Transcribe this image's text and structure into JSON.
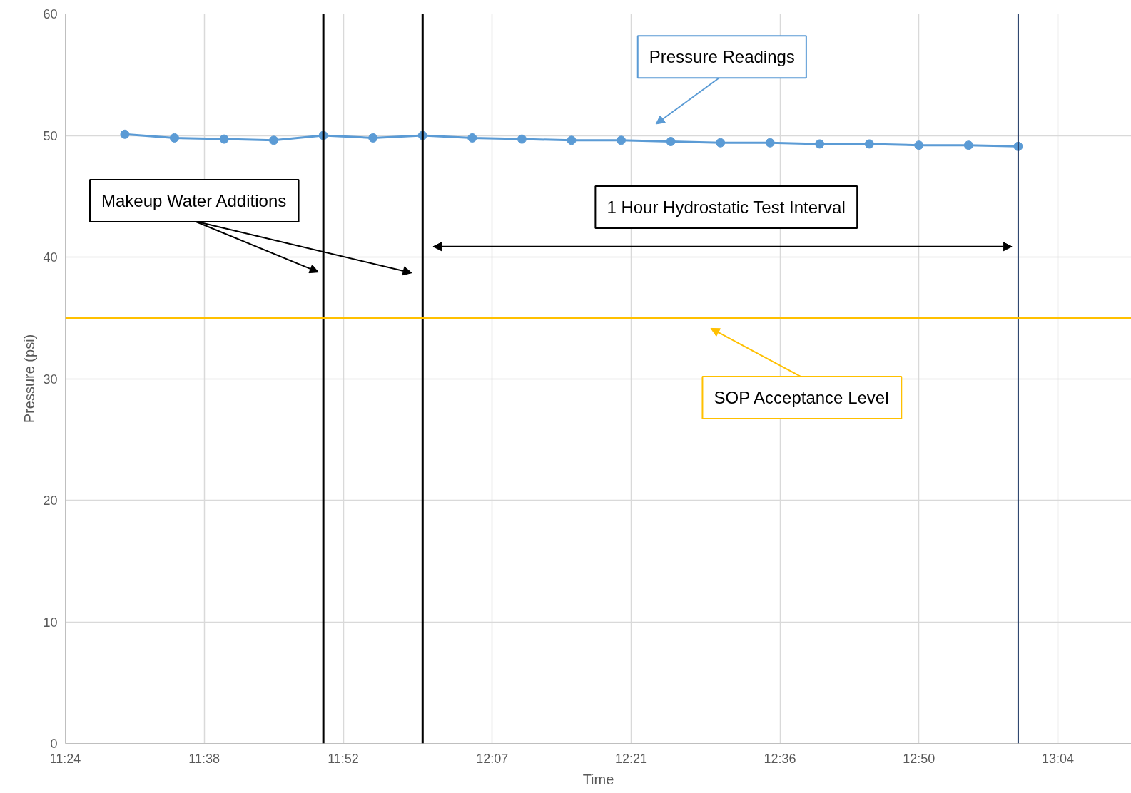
{
  "chart_data": {
    "type": "line",
    "xlabel": "Time",
    "ylabel": "Pressure (psi)",
    "x": [
      11.5,
      11.5833,
      11.6667,
      11.75,
      11.8333,
      11.9167,
      12.0,
      12.0833,
      12.1667,
      12.25,
      12.3333,
      12.4167,
      12.5,
      12.5833,
      12.6667,
      12.75,
      12.8333,
      12.9167,
      13.0
    ],
    "series": [
      {
        "color": "#5b9bd5",
        "values": [
          50.1,
          49.8,
          49.7,
          49.6,
          50.0,
          49.8,
          50.0,
          49.8,
          49.7,
          49.6,
          49.6,
          49.5,
          49.4,
          49.4,
          49.3,
          49.3,
          49.2,
          49.2,
          49.1
        ]
      }
    ],
    "marker": "circle",
    "line_style": "solid",
    "grid": true,
    "xlim": [
      11.4,
      13.19
    ],
    "ylim": [
      0,
      60
    ],
    "xticks": [
      {
        "value": 11.4,
        "label": "11:24"
      },
      {
        "value": 11.6333,
        "label": "11:38"
      },
      {
        "value": 11.8667,
        "label": "11:52"
      },
      {
        "value": 12.1167,
        "label": "12:07"
      },
      {
        "value": 12.35,
        "label": "12:21"
      },
      {
        "value": 12.6,
        "label": "12:36"
      },
      {
        "value": 12.8333,
        "label": "12:50"
      },
      {
        "value": 13.0667,
        "label": "13:04"
      }
    ],
    "yticks": [
      0,
      10,
      20,
      30,
      40,
      50,
      60
    ],
    "ref_lines": [
      {
        "axis": "x",
        "value": 11.8333,
        "color": "#000000"
      },
      {
        "axis": "x",
        "value": 12.0,
        "color": "#000000"
      },
      {
        "axis": "x",
        "value": 13.0,
        "color": "#1f3864"
      },
      {
        "axis": "y",
        "value": 35,
        "color": "#ffc000"
      }
    ],
    "annotations": [
      "Pressure Readings",
      "Makeup Water Additions",
      "1 Hour Hydrostatic Test Interval",
      "SOP Acceptance Level"
    ]
  }
}
